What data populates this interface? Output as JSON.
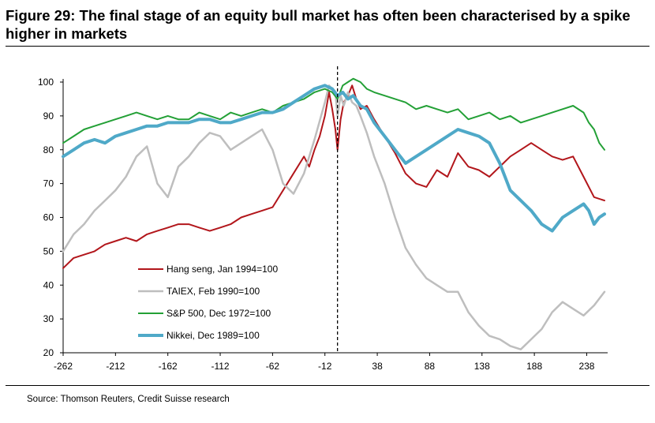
{
  "figure": {
    "title": "Figure 29: The final stage of an equity bull market has often been characterised by a spike higher in markets",
    "source": "Source: Thomson Reuters, Credit Suisse research"
  },
  "chart_data": {
    "type": "line",
    "title": "Figure 29: The final stage of an equity bull market has often been characterised by a spike higher in markets",
    "xlabel": "",
    "ylabel": "",
    "xlim": [
      -262,
      258
    ],
    "ylim": [
      20,
      100
    ],
    "xticks": [
      -262,
      -212,
      -162,
      -112,
      -62,
      -12,
      38,
      88,
      138,
      188,
      238
    ],
    "yticks": [
      20,
      30,
      40,
      50,
      60,
      70,
      80,
      90,
      100
    ],
    "grid": false,
    "vline": {
      "x": 0,
      "style": "dashed"
    },
    "legend": {
      "placement": "lower-left"
    },
    "series": [
      {
        "name": "Hang seng, Jan 1994=100",
        "color": "#b2161b",
        "x": [
          -262,
          -252,
          -242,
          -232,
          -222,
          -212,
          -202,
          -192,
          -182,
          -172,
          -162,
          -152,
          -142,
          -132,
          -122,
          -112,
          -102,
          -92,
          -82,
          -72,
          -62,
          -52,
          -42,
          -32,
          -27,
          -22,
          -17,
          -12,
          -8,
          -5,
          -2,
          0,
          3,
          6,
          10,
          14,
          18,
          22,
          28,
          35,
          45,
          55,
          65,
          75,
          85,
          95,
          105,
          115,
          125,
          135,
          145,
          155,
          165,
          175,
          185,
          195,
          205,
          215,
          225,
          235,
          245,
          255
        ],
        "y": [
          45,
          48,
          49,
          50,
          52,
          53,
          54,
          53,
          55,
          56,
          57,
          58,
          58,
          57,
          56,
          57,
          58,
          60,
          61,
          62,
          63,
          68,
          73,
          78,
          75,
          80,
          84,
          90,
          97,
          92,
          86,
          80,
          89,
          94,
          96,
          99,
          95,
          92,
          93,
          89,
          84,
          79,
          73,
          70,
          69,
          74,
          72,
          79,
          75,
          74,
          72,
          75,
          78,
          80,
          82,
          80,
          78,
          77,
          78,
          72,
          66,
          65
        ]
      },
      {
        "name": "TAIEX, Feb 1990=100",
        "color": "#bebebe",
        "x": [
          -262,
          -252,
          -242,
          -232,
          -222,
          -212,
          -202,
          -192,
          -182,
          -172,
          -162,
          -152,
          -142,
          -132,
          -122,
          -112,
          -102,
          -92,
          -82,
          -72,
          -62,
          -52,
          -42,
          -32,
          -22,
          -12,
          -8,
          -5,
          -2,
          0,
          3,
          6,
          10,
          14,
          18,
          22,
          28,
          35,
          45,
          55,
          65,
          75,
          85,
          95,
          105,
          115,
          125,
          135,
          145,
          155,
          165,
          175,
          185,
          195,
          205,
          215,
          225,
          235,
          245,
          255
        ],
        "y": [
          50,
          55,
          58,
          62,
          65,
          68,
          72,
          78,
          81,
          70,
          66,
          75,
          78,
          82,
          85,
          84,
          80,
          82,
          84,
          86,
          80,
          70,
          67,
          73,
          83,
          94,
          99,
          98,
          97,
          90,
          96,
          93,
          97,
          94,
          93,
          90,
          85,
          78,
          70,
          60,
          51,
          46,
          42,
          40,
          38,
          38,
          32,
          28,
          25,
          24,
          22,
          21,
          24,
          27,
          32,
          35,
          33,
          31,
          34,
          38
        ]
      },
      {
        "name": "S&P 500, Dec 1972=100",
        "color": "#23a036",
        "x": [
          -262,
          -252,
          -242,
          -232,
          -222,
          -212,
          -202,
          -192,
          -182,
          -172,
          -162,
          -152,
          -142,
          -132,
          -122,
          -112,
          -102,
          -92,
          -82,
          -72,
          -62,
          -52,
          -42,
          -32,
          -22,
          -12,
          -5,
          0,
          5,
          10,
          15,
          22,
          28,
          35,
          45,
          55,
          65,
          75,
          85,
          95,
          105,
          115,
          125,
          135,
          145,
          155,
          165,
          175,
          185,
          195,
          205,
          215,
          225,
          235,
          240,
          245,
          250,
          255
        ],
        "y": [
          82,
          84,
          86,
          87,
          88,
          89,
          90,
          91,
          90,
          89,
          90,
          89,
          89,
          91,
          90,
          89,
          91,
          90,
          91,
          92,
          91,
          93,
          94,
          95,
          97,
          98,
          97,
          95,
          99,
          100,
          101,
          100,
          98,
          97,
          96,
          95,
          94,
          92,
          93,
          92,
          91,
          92,
          89,
          90,
          91,
          89,
          90,
          88,
          89,
          90,
          91,
          92,
          93,
          91,
          88,
          86,
          82,
          80
        ]
      },
      {
        "name": "Nikkei, Dec 1989=100",
        "color": "#4fa9c8",
        "x": [
          -262,
          -252,
          -242,
          -232,
          -222,
          -212,
          -202,
          -192,
          -182,
          -172,
          -162,
          -152,
          -142,
          -132,
          -122,
          -112,
          -102,
          -92,
          -82,
          -72,
          -62,
          -52,
          -42,
          -32,
          -22,
          -12,
          -5,
          0,
          5,
          10,
          15,
          22,
          28,
          35,
          45,
          55,
          65,
          75,
          85,
          95,
          105,
          115,
          125,
          135,
          145,
          155,
          165,
          175,
          185,
          195,
          205,
          215,
          225,
          235,
          240,
          245,
          250,
          255
        ],
        "y": [
          78,
          80,
          82,
          83,
          82,
          84,
          85,
          86,
          87,
          87,
          88,
          88,
          88,
          89,
          89,
          88,
          88,
          89,
          90,
          91,
          91,
          92,
          94,
          96,
          98,
          99,
          98,
          96,
          97,
          95,
          96,
          93,
          92,
          88,
          84,
          80,
          76,
          78,
          80,
          82,
          84,
          86,
          85,
          84,
          82,
          76,
          68,
          65,
          62,
          58,
          56,
          60,
          62,
          64,
          62,
          58,
          60,
          61
        ]
      }
    ]
  }
}
